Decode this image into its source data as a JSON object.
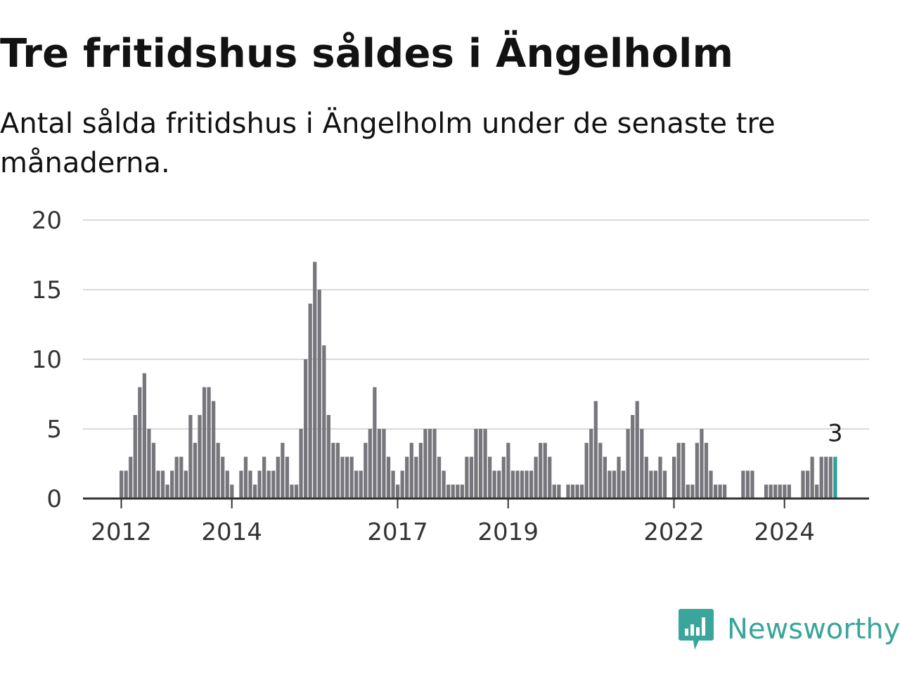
{
  "header": {
    "title": "Tre fritidshus såldes i Ängelholm",
    "subtitle": "Antal sålda fritidshus i Ängelholm under de senaste tre månaderna."
  },
  "brand": {
    "name": "Newsworthy",
    "icon": "newsworthy-logo-icon",
    "color": "#3aa59a"
  },
  "chart_data": {
    "type": "bar",
    "title": "Tre fritidshus såldes i Ängelholm",
    "subtitle": "Antal sålda fritidshus i Ängelholm under de senaste tre månaderna.",
    "x_start": "2012-01",
    "x_unit": "month",
    "values": [
      2,
      2,
      3,
      6,
      8,
      9,
      5,
      4,
      2,
      2,
      1,
      2,
      3,
      3,
      2,
      6,
      4,
      6,
      8,
      8,
      7,
      4,
      3,
      2,
      1,
      0,
      2,
      3,
      2,
      1,
      2,
      3,
      2,
      2,
      3,
      4,
      3,
      1,
      1,
      5,
      10,
      14,
      17,
      15,
      11,
      6,
      4,
      4,
      3,
      3,
      3,
      2,
      2,
      4,
      5,
      8,
      5,
      5,
      3,
      2,
      1,
      2,
      3,
      4,
      3,
      4,
      5,
      5,
      5,
      3,
      2,
      1,
      1,
      1,
      1,
      3,
      3,
      5,
      5,
      5,
      3,
      2,
      2,
      3,
      4,
      2,
      2,
      2,
      2,
      2,
      3,
      4,
      4,
      3,
      1,
      1,
      0,
      1,
      1,
      1,
      1,
      4,
      5,
      7,
      4,
      3,
      2,
      2,
      3,
      2,
      5,
      6,
      7,
      5,
      3,
      2,
      2,
      3,
      2,
      0,
      3,
      4,
      4,
      1,
      1,
      4,
      5,
      4,
      2,
      1,
      1,
      1,
      0,
      0,
      0,
      2,
      2,
      2,
      0,
      0,
      1,
      1,
      1,
      1,
      1,
      1,
      0,
      0,
      2,
      2,
      3,
      1,
      3,
      3,
      3,
      3
    ],
    "highlight_last": true,
    "last_value_label": "3",
    "x_ticks": [
      "2012",
      "2014",
      "2017",
      "2019",
      "2022",
      "2024"
    ],
    "y_ticks": [
      "0",
      "5",
      "10",
      "15",
      "20"
    ],
    "ylim": [
      0,
      20
    ],
    "xlabel": "",
    "ylabel": "",
    "grid": true,
    "colors": {
      "bar": "#77767c",
      "highlight": "#2aa198",
      "grid": "#d9d9d9",
      "axis": "#333333"
    }
  }
}
